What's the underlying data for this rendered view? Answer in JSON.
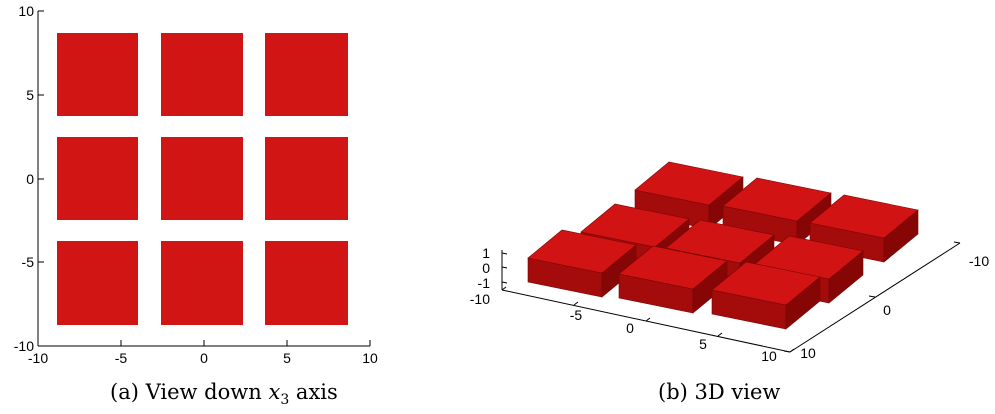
{
  "panel_a": {
    "caption_label": "(a)",
    "caption_text": "View down",
    "caption_var": "x",
    "caption_sub": "3",
    "caption_tail": "axis",
    "x_ticks": [
      "-10",
      "-5",
      "0",
      "5",
      "10"
    ],
    "y_ticks": [
      "10",
      "5",
      "0",
      "-5",
      "-10"
    ],
    "block_color": "#d11414"
  },
  "panel_b": {
    "caption_label": "(b)",
    "caption_text": "3D view",
    "z_ticks": [
      "1",
      "0",
      "-1"
    ],
    "x_ticks": [
      "-10",
      "-5",
      "0",
      "5",
      "10"
    ],
    "y_ticks": [
      "-10",
      "0",
      "10"
    ],
    "top_color": "#d21313",
    "front_color": "#a40b0b",
    "side_color": "#860606"
  }
}
